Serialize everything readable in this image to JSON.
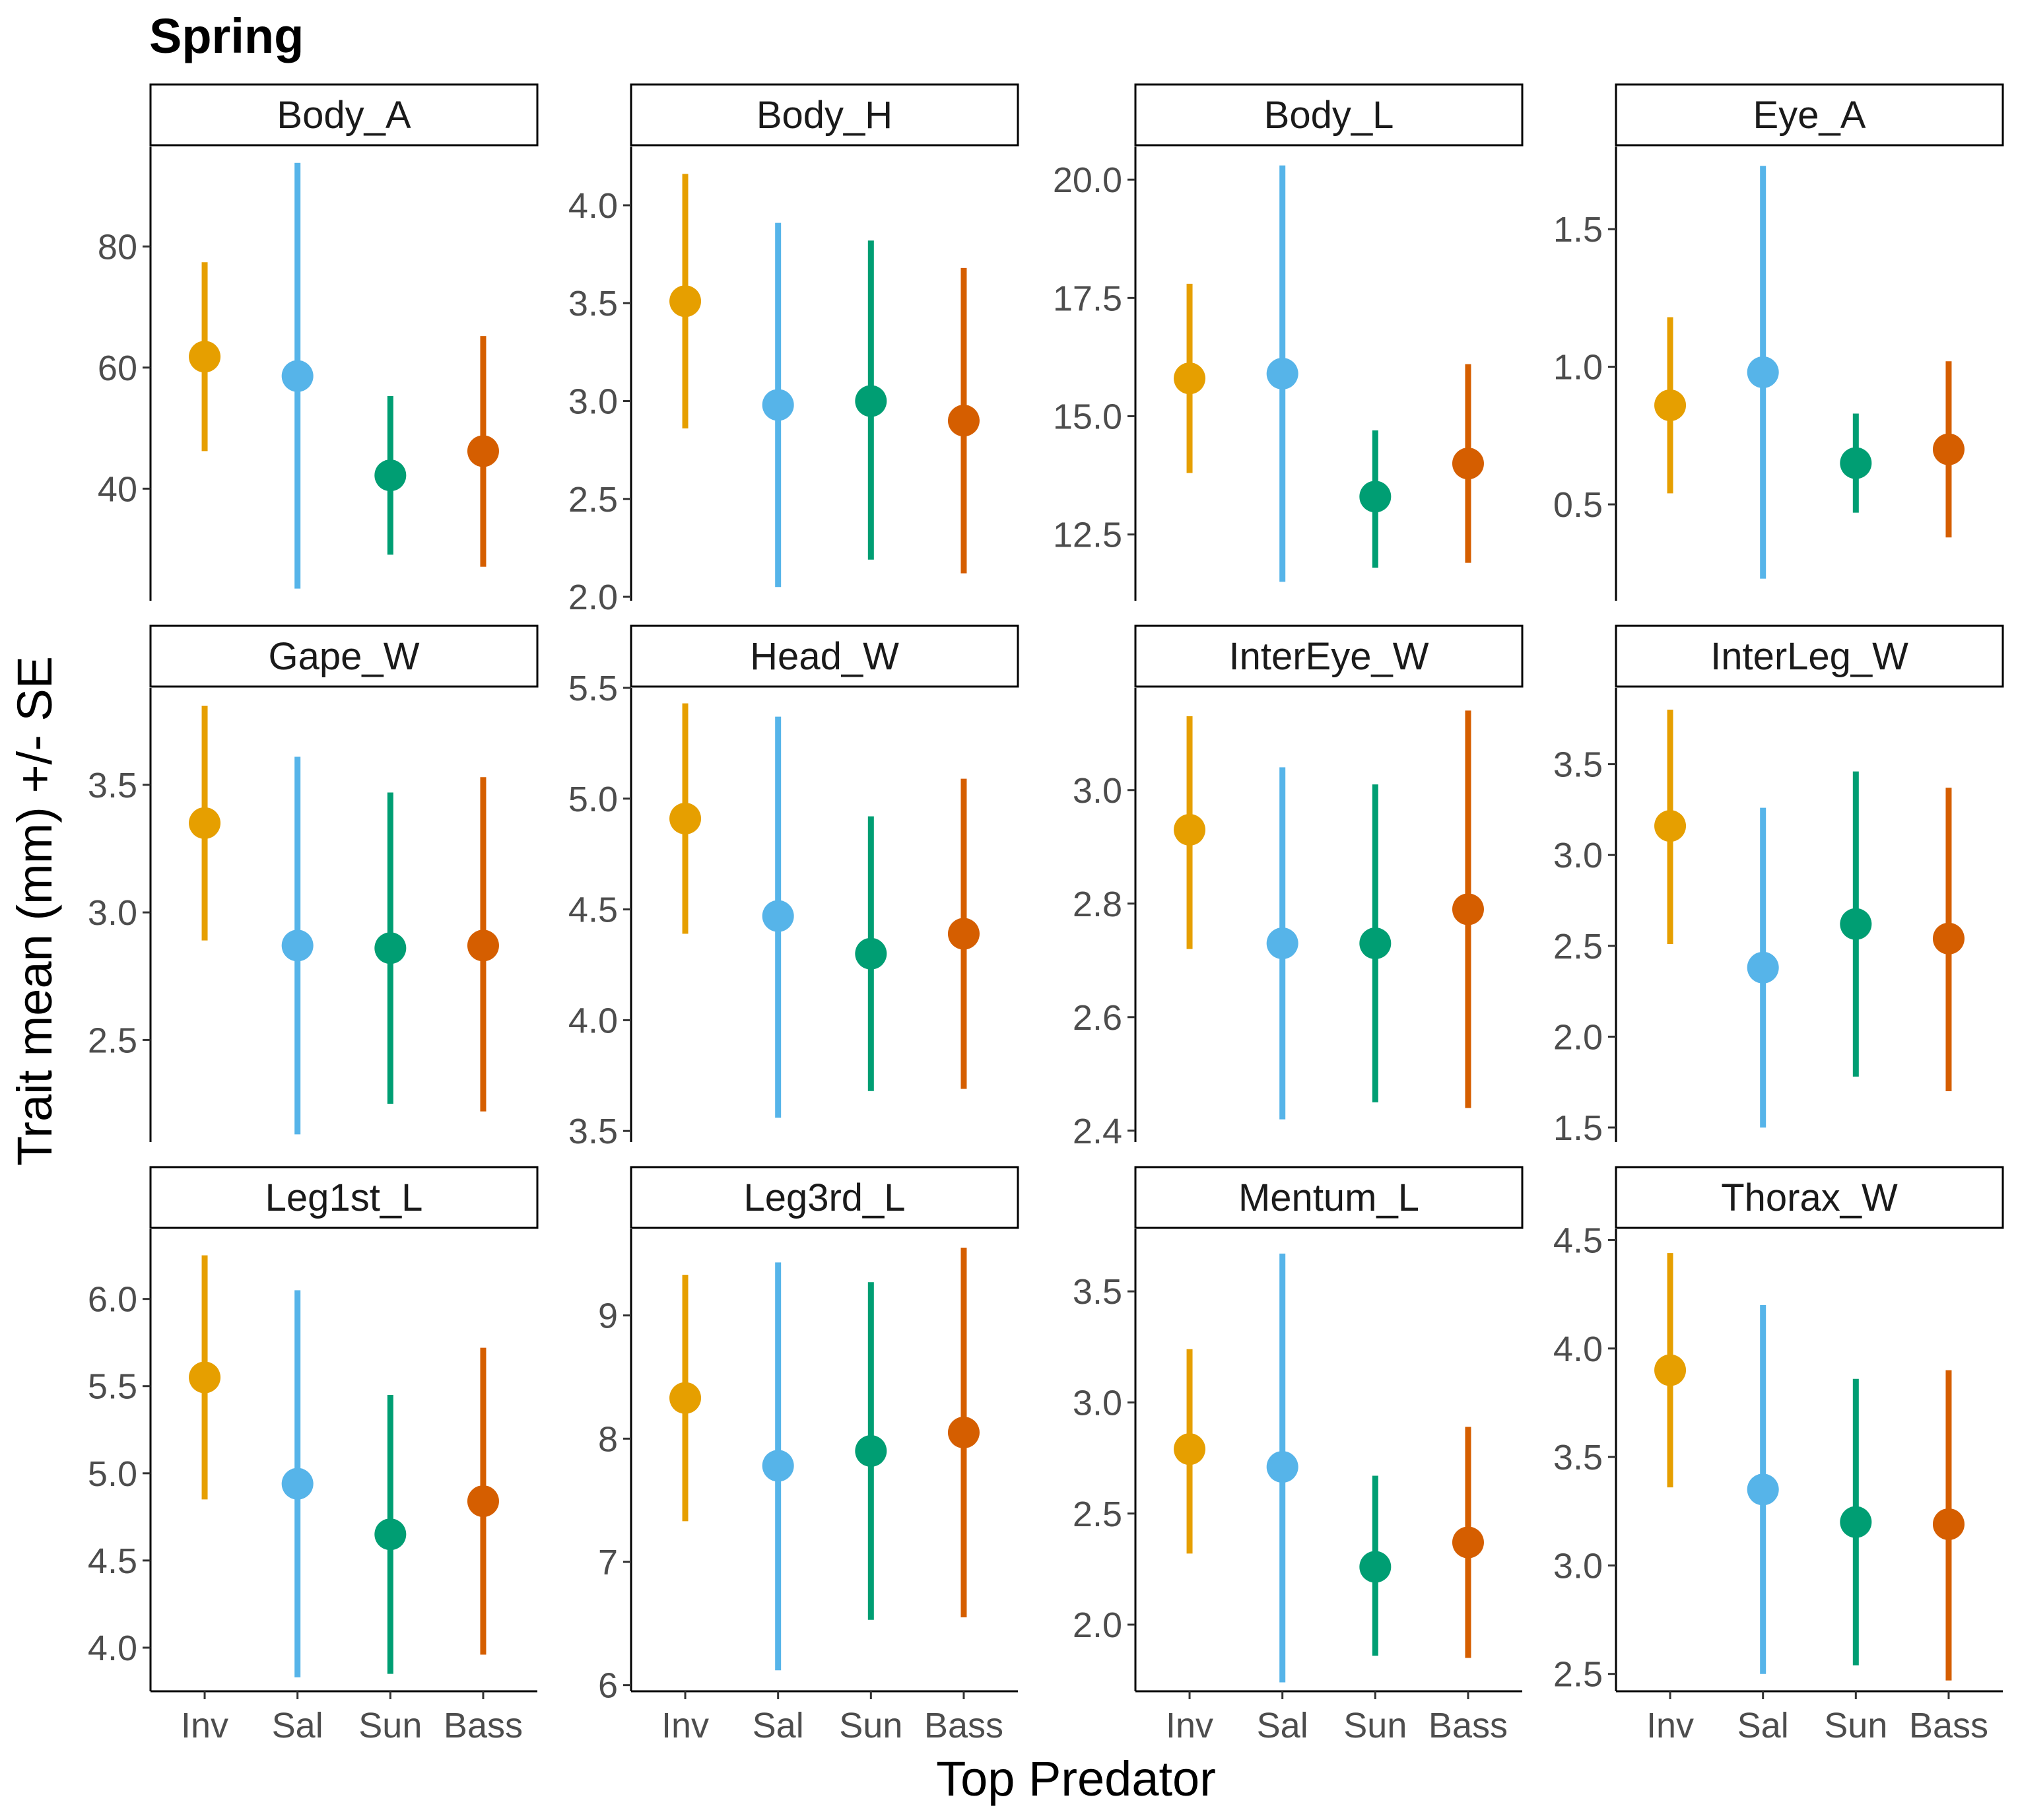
{
  "title": "Spring",
  "xlabel": "Top Predator",
  "ylabel": "Trait mean (mm) +/- SE",
  "chart_data": {
    "type": "errorbar",
    "title": "Spring",
    "xlabel": "Top Predator",
    "ylabel": "Trait mean (mm) +/- SE",
    "categories": [
      "Inv",
      "Sal",
      "Sun",
      "Bass"
    ],
    "colors": [
      "#E69F00",
      "#56B4E9",
      "#009E73",
      "#D55E00"
    ],
    "grid": false,
    "legend": "none",
    "facets": [
      {
        "name": "Body_A",
        "ylim": [
          21.5,
          96.5
        ],
        "yticks": [
          40,
          60,
          80
        ],
        "ytick_labels": [
          "40",
          "60",
          "80"
        ],
        "means": [
          61.8,
          58.6,
          42.2,
          46.2
        ],
        "lower": [
          46.2,
          23.5,
          29.1,
          27.1
        ],
        "upper": [
          77.4,
          93.8,
          55.3,
          65.2
        ]
      },
      {
        "name": "Body_H",
        "ylim": [
          1.98,
          4.3
        ],
        "yticks": [
          2.0,
          2.5,
          3.0,
          3.5,
          4.0
        ],
        "ytick_labels": [
          "2.0",
          "2.5",
          "3.0",
          "3.5",
          "4.0"
        ],
        "means": [
          3.51,
          2.98,
          3.0,
          2.9
        ],
        "lower": [
          2.86,
          2.05,
          2.19,
          2.12
        ],
        "upper": [
          4.16,
          3.91,
          3.82,
          3.68
        ]
      },
      {
        "name": "Body_L",
        "ylim": [
          11.1,
          20.7
        ],
        "yticks": [
          12.5,
          15.0,
          17.5,
          20.0
        ],
        "ytick_labels": [
          "12.5",
          "15.0",
          "17.5",
          "20.0"
        ],
        "means": [
          15.8,
          15.9,
          13.3,
          14.0
        ],
        "lower": [
          13.8,
          11.5,
          11.8,
          11.9
        ],
        "upper": [
          17.8,
          20.3,
          14.7,
          16.1
        ]
      },
      {
        "name": "Eye_A",
        "ylim": [
          0.15,
          1.8
        ],
        "yticks": [
          0.5,
          1.0,
          1.5
        ],
        "ytick_labels": [
          "0.5",
          "1.0",
          "1.5"
        ],
        "means": [
          0.86,
          0.98,
          0.65,
          0.7
        ],
        "lower": [
          0.54,
          0.23,
          0.47,
          0.38
        ],
        "upper": [
          1.18,
          1.73,
          0.83,
          1.02
        ]
      },
      {
        "name": "Gape_W",
        "ylim": [
          2.1,
          3.88
        ],
        "yticks": [
          2.5,
          3.0,
          3.5
        ],
        "ytick_labels": [
          "2.5",
          "3.0",
          "3.5"
        ],
        "means": [
          3.35,
          2.87,
          2.86,
          2.87
        ],
        "lower": [
          2.89,
          2.13,
          2.25,
          2.22
        ],
        "upper": [
          3.81,
          3.61,
          3.47,
          3.53
        ]
      },
      {
        "name": "Head_W",
        "ylim": [
          3.45,
          5.5
        ],
        "yticks": [
          3.5,
          4.0,
          4.5,
          5.0,
          5.5
        ],
        "ytick_labels": [
          "3.5",
          "4.0",
          "4.5",
          "5.0",
          "5.5"
        ],
        "means": [
          4.91,
          4.47,
          4.3,
          4.39
        ],
        "lower": [
          4.39,
          3.56,
          3.68,
          3.69
        ],
        "upper": [
          5.43,
          5.37,
          4.92,
          5.09
        ]
      },
      {
        "name": "InterEye_W",
        "ylim": [
          2.38,
          3.18
        ],
        "yticks": [
          2.4,
          2.6,
          2.8,
          3.0
        ],
        "ytick_labels": [
          "2.4",
          "2.6",
          "2.8",
          "3.0"
        ],
        "means": [
          2.93,
          2.73,
          2.73,
          2.79
        ],
        "lower": [
          2.72,
          2.42,
          2.45,
          2.44
        ],
        "upper": [
          3.13,
          3.04,
          3.01,
          3.14
        ]
      },
      {
        "name": "InterLeg_W",
        "ylim": [
          1.42,
          3.92
        ],
        "yticks": [
          1.5,
          2.0,
          2.5,
          3.0,
          3.5
        ],
        "ytick_labels": [
          "1.5",
          "2.0",
          "2.5",
          "3.0",
          "3.5"
        ],
        "means": [
          3.16,
          2.38,
          2.62,
          2.54
        ],
        "lower": [
          2.51,
          1.5,
          1.78,
          1.7
        ],
        "upper": [
          3.8,
          3.26,
          3.46,
          3.37
        ]
      },
      {
        "name": "Leg1st_L",
        "ylim": [
          3.75,
          6.4
        ],
        "yticks": [
          4.0,
          4.5,
          5.0,
          5.5,
          6.0
        ],
        "ytick_labels": [
          "4.0",
          "4.5",
          "5.0",
          "5.5",
          "6.0"
        ],
        "means": [
          5.55,
          4.94,
          4.65,
          4.84
        ],
        "lower": [
          4.85,
          3.83,
          3.85,
          3.96
        ],
        "upper": [
          6.25,
          6.05,
          5.45,
          5.72
        ]
      },
      {
        "name": "Leg3rd_L",
        "ylim": [
          5.95,
          9.7
        ],
        "yticks": [
          6,
          7,
          8,
          9
        ],
        "ytick_labels": [
          "6",
          "7",
          "8",
          "9"
        ],
        "means": [
          8.33,
          7.78,
          7.9,
          8.05
        ],
        "lower": [
          7.33,
          6.12,
          6.53,
          6.55
        ],
        "upper": [
          9.33,
          9.43,
          9.27,
          9.55
        ]
      },
      {
        "name": "Mentum_L",
        "ylim": [
          1.7,
          3.78
        ],
        "yticks": [
          2.0,
          2.5,
          3.0,
          3.5
        ],
        "ytick_labels": [
          "2.0",
          "2.5",
          "3.0",
          "3.5"
        ],
        "means": [
          2.79,
          2.71,
          2.26,
          2.37
        ],
        "lower": [
          2.32,
          1.74,
          1.86,
          1.85
        ],
        "upper": [
          3.24,
          3.67,
          2.67,
          2.89
        ]
      },
      {
        "name": "Thorax_W",
        "ylim": [
          2.42,
          4.55
        ],
        "yticks": [
          2.5,
          3.0,
          3.5,
          4.0,
          4.5
        ],
        "ytick_labels": [
          "2.5",
          "3.0",
          "3.5",
          "4.0",
          "4.5"
        ],
        "means": [
          3.9,
          3.35,
          3.2,
          3.19
        ],
        "lower": [
          3.36,
          2.5,
          2.54,
          2.47
        ],
        "upper": [
          4.44,
          4.2,
          3.86,
          3.9
        ]
      }
    ]
  }
}
